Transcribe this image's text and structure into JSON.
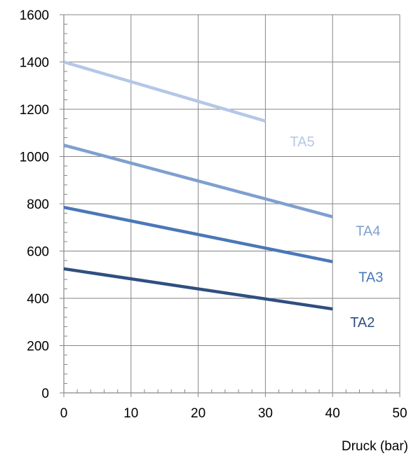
{
  "chart_data": {
    "type": "line",
    "title": "",
    "xlabel": "Druck (bar)",
    "ylabel": "",
    "xlim": [
      0,
      50
    ],
    "ylim": [
      0,
      1600
    ],
    "x_ticks": [
      0,
      10,
      20,
      30,
      40,
      50
    ],
    "y_ticks": [
      0,
      200,
      400,
      600,
      800,
      1000,
      1200,
      1400,
      1600
    ],
    "grid": true,
    "legend": "none",
    "series": [
      {
        "name": "TA5",
        "color": "#b4c7e7",
        "x": [
          0,
          30
        ],
        "y": [
          1400,
          1150
        ]
      },
      {
        "name": "TA4",
        "color": "#7f9fd0",
        "x": [
          0,
          40
        ],
        "y": [
          1048,
          745
        ]
      },
      {
        "name": "TA3",
        "color": "#4a78b8",
        "x": [
          0,
          40
        ],
        "y": [
          785,
          555
        ]
      },
      {
        "name": "TA2",
        "color": "#2f4f7f",
        "x": [
          0,
          40
        ],
        "y": [
          525,
          355
        ]
      }
    ]
  }
}
